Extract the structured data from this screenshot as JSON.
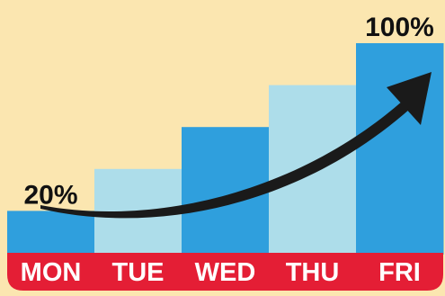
{
  "chart_data": {
    "type": "bar",
    "categories": [
      "MON",
      "TUE",
      "WED",
      "THU",
      "FRI"
    ],
    "values": [
      20,
      40,
      60,
      80,
      100
    ],
    "data_labels": [
      "20%",
      "",
      "",
      "",
      "100%"
    ],
    "title": "",
    "xlabel": "",
    "ylabel": "",
    "ylim": [
      0,
      100
    ],
    "grid": false,
    "legend": "none",
    "trend_arrow": true,
    "colors": {
      "background": "#FBE6B0",
      "bar_dark": "#2F9FDD",
      "bar_light": "#ADDDEA",
      "axis_band": "#E41E35",
      "axis_text": "#FFFFFF",
      "label_text": "#111111",
      "arrow": "#1A1A1A"
    }
  }
}
